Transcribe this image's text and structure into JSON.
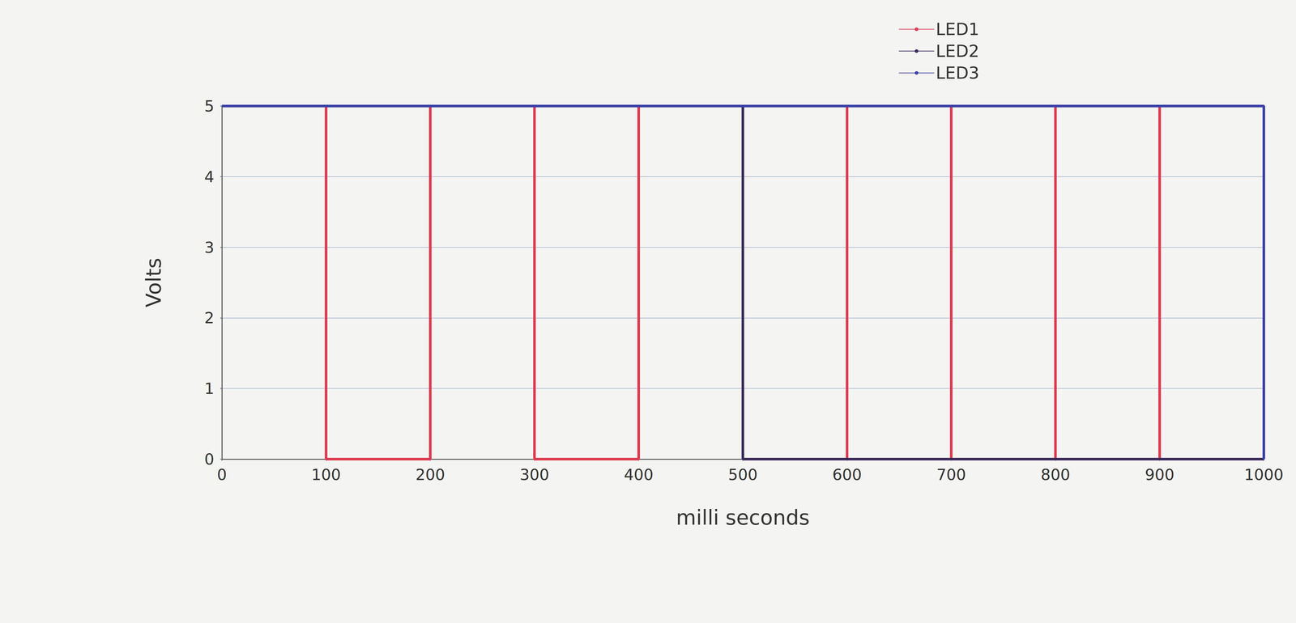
{
  "chart_data": {
    "type": "line",
    "x_label": "milli seconds",
    "y_label": "Volts",
    "x": [
      0,
      100,
      200,
      300,
      400,
      500,
      600,
      700,
      800,
      900,
      1000
    ],
    "series": [
      {
        "name": "LED1",
        "color": "#e0394f",
        "values": [
          5,
          0,
          5,
          0,
          5,
          0,
          5,
          0,
          5,
          0,
          0
        ]
      },
      {
        "name": "LED2",
        "color": "#3a2a5a",
        "values": [
          5,
          5,
          5,
          5,
          5,
          0,
          0,
          0,
          0,
          0,
          0
        ]
      },
      {
        "name": "LED3",
        "color": "#3b3fa8",
        "values": [
          5,
          5,
          5,
          5,
          5,
          5,
          5,
          5,
          5,
          5,
          0
        ]
      }
    ],
    "xlim": [
      0,
      1000
    ],
    "xticks": [
      0,
      100,
      200,
      300,
      400,
      500,
      600,
      700,
      800,
      900,
      1000
    ],
    "ylim": [
      0,
      5
    ],
    "yticks": [
      0,
      1,
      2,
      3,
      4,
      5
    ],
    "grid": true,
    "legend": "upper right",
    "marker": "none",
    "line_style": "solid"
  }
}
